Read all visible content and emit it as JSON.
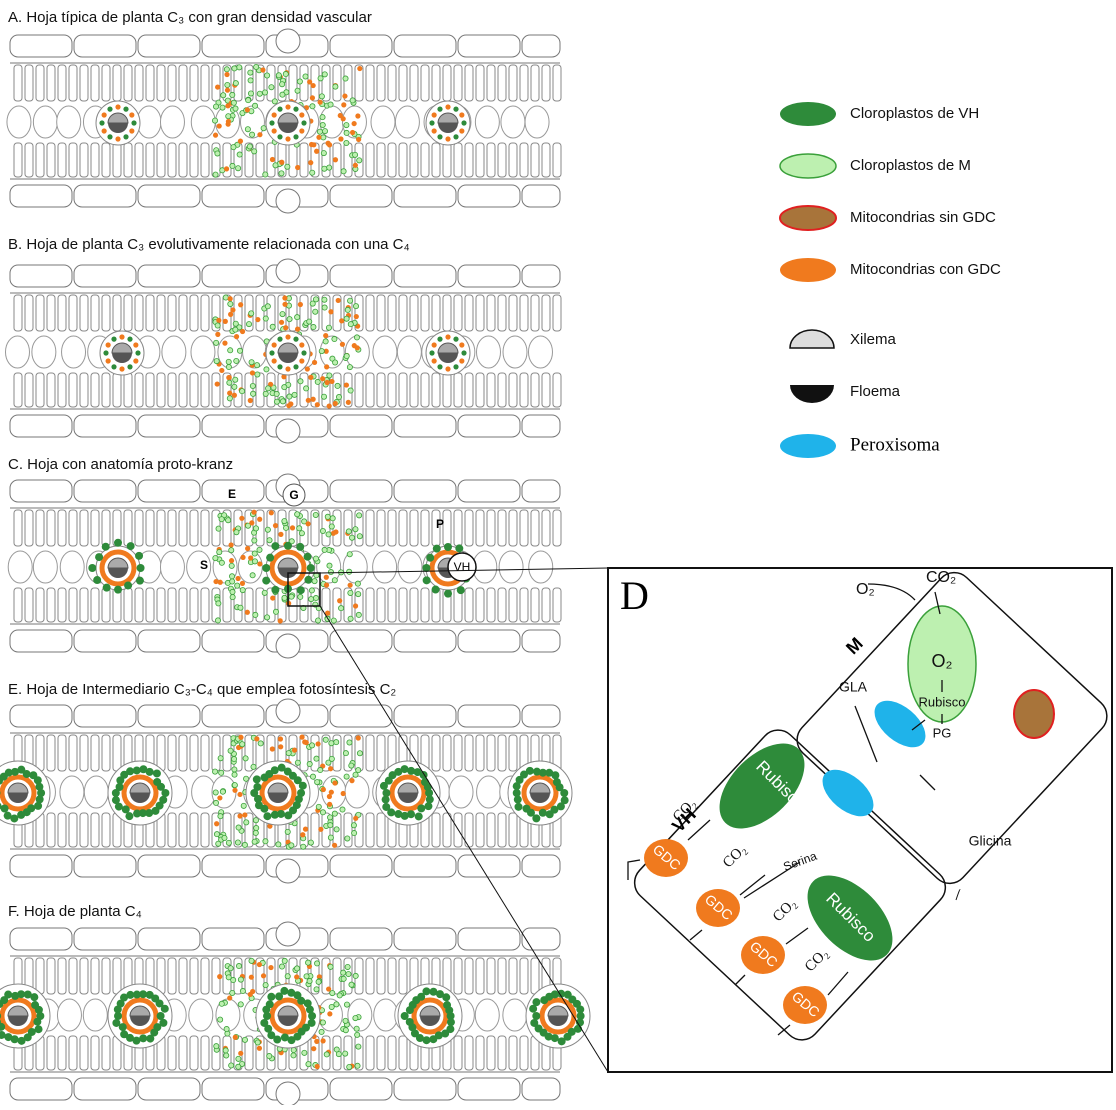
{
  "panels": [
    {
      "title": "A. Hoja típica de planta C₃ con gran densidad vascular"
    },
    {
      "title": "B. Hoja de planta C₃ evolutivamente relacionada con una C₄"
    },
    {
      "title": "C. Hoja con anatomía proto-kranz",
      "labels": [
        "E",
        "G",
        "P",
        "S",
        "VH"
      ]
    },
    {
      "title": "E. Hoja de Intermediario C₃-C₄ que emplea fotosíntesis C₂"
    },
    {
      "title": "F. Hoja de planta C₄"
    }
  ],
  "legend": [
    "Cloroplastos de VH",
    "Cloroplastos de M",
    "Mitocondrias sin GDC",
    "Mitocondrias con GDC",
    "Xilema",
    "Floema",
    "Peroxisoma"
  ],
  "detail": {
    "letter": "D",
    "m_cell": "M",
    "vh_cell": "VH",
    "m_texts": {
      "co2": "CO₂",
      "o2_in": "O₂",
      "o2": "O₂",
      "rubisco": "Rubisco",
      "pg": "PG",
      "gla": "GLA",
      "glicina": "Glicina"
    },
    "vh_texts": {
      "co2_1": "CO₂",
      "co2_2": "CO₂",
      "co2_3": "CO₂",
      "co2_4": "CO₂",
      "rubisco_1": "Rubisco",
      "rubisco_2": "Rubisco",
      "serina": "Serina"
    },
    "gdc": [
      "GDC",
      "GDC",
      "GDC",
      "GDC"
    ]
  }
}
